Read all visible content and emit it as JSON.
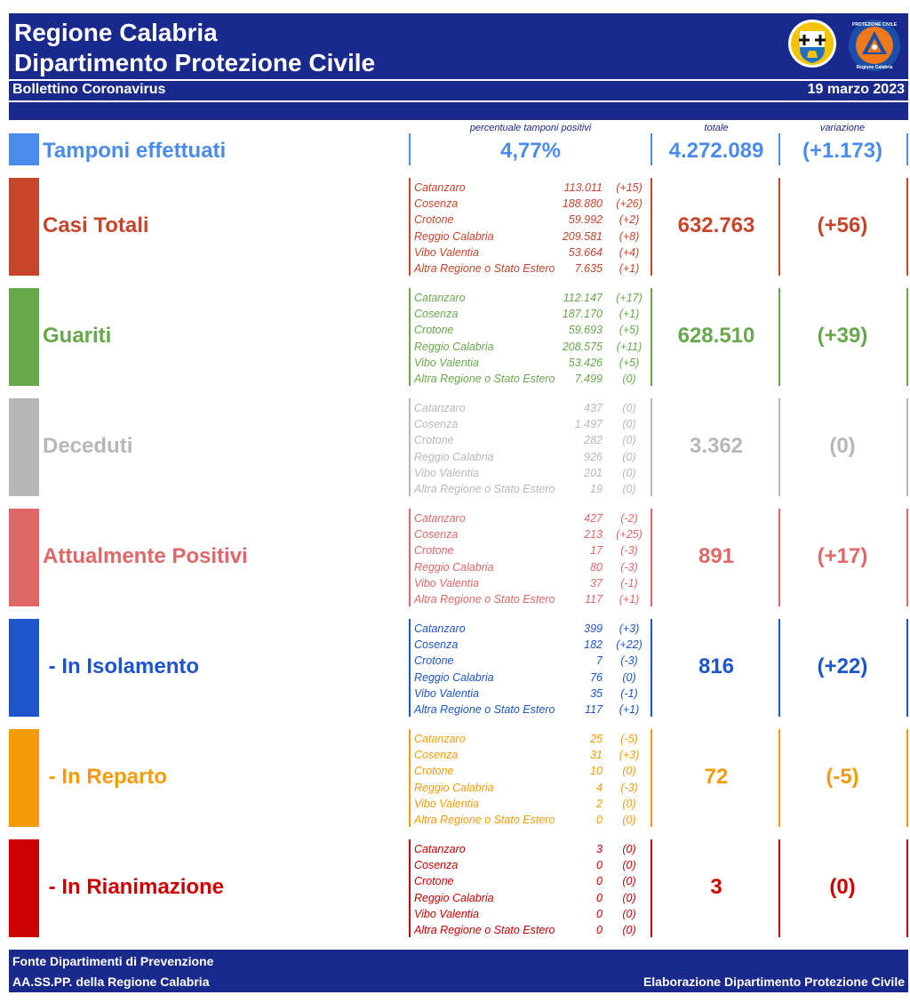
{
  "header": {
    "title_line1": "Regione Calabria",
    "title_line2": "Dipartimento Protezione Civile",
    "subtitle": "Bollettino Coronavirus",
    "date": "19 marzo 2023",
    "logo2_text_top": "PROTEZIONE CIVILE",
    "logo2_text_bottom": "Regione Calabria"
  },
  "tamponi": {
    "label": "Tamponi effettuati",
    "caption_percent": "percentuale tamponi positivi",
    "caption_total": "totale",
    "caption_variation": "variazione",
    "percent": "4,77%",
    "total": "4.272.089",
    "variation": "(+1.173)",
    "color": "#4a8bee"
  },
  "sections": [
    {
      "label": "Casi Totali",
      "color": "#c8442a",
      "total": "632.763",
      "variation": "(+56)",
      "items": [
        {
          "name": "Catanzaro",
          "value": "113.011",
          "delta": "(+15)"
        },
        {
          "name": "Cosenza",
          "value": "188.880",
          "delta": "(+26)"
        },
        {
          "name": "Crotone",
          "value": "59.992",
          "delta": "(+2)"
        },
        {
          "name": "Reggio Calabria",
          "value": "209.581",
          "delta": "(+8)"
        },
        {
          "name": "Vibo Valentia",
          "value": "53.664",
          "delta": "(+4)"
        },
        {
          "name": "Altra Regione o Stato Estero",
          "value": "7.635",
          "delta": "(+1)"
        }
      ]
    },
    {
      "label": "Guariti",
      "color": "#66a84a",
      "total": "628.510",
      "variation": "(+39)",
      "items": [
        {
          "name": "Catanzaro",
          "value": "112.147",
          "delta": "(+17)"
        },
        {
          "name": "Cosenza",
          "value": "187.170",
          "delta": "(+1)"
        },
        {
          "name": "Crotone",
          "value": "59.693",
          "delta": "(+5)"
        },
        {
          "name": "Reggio Calabria",
          "value": "208.575",
          "delta": "(+11)"
        },
        {
          "name": "Vibo Valentia",
          "value": "53.426",
          "delta": "(+5)"
        },
        {
          "name": "Altra Regione o Stato Estero",
          "value": "7.499",
          "delta": "(0)"
        }
      ]
    },
    {
      "label": "Deceduti",
      "color": "#b7b7b7",
      "total": "3.362",
      "variation": "(0)",
      "items": [
        {
          "name": "Catanzaro",
          "value": "437",
          "delta": "(0)"
        },
        {
          "name": "Cosenza",
          "value": "1.497",
          "delta": "(0)"
        },
        {
          "name": "Crotone",
          "value": "282",
          "delta": "(0)"
        },
        {
          "name": "Reggio Calabria",
          "value": "926",
          "delta": "(0)"
        },
        {
          "name": "Vibo Valentia",
          "value": "201",
          "delta": "(0)"
        },
        {
          "name": "Altra Regione o Stato Estero",
          "value": "19",
          "delta": "(0)"
        }
      ]
    },
    {
      "label": "Attualmente Positivi",
      "color": "#e06767",
      "total": "891",
      "variation": "(+17)",
      "items": [
        {
          "name": "Catanzaro",
          "value": "427",
          "delta": "(-2)"
        },
        {
          "name": "Cosenza",
          "value": "213",
          "delta": "(+25)"
        },
        {
          "name": "Crotone",
          "value": "17",
          "delta": "(-3)"
        },
        {
          "name": "Reggio Calabria",
          "value": "80",
          "delta": "(-3)"
        },
        {
          "name": "Vibo Valentia",
          "value": "37",
          "delta": "(-1)"
        },
        {
          "name": "Altra Regione o Stato Estero",
          "value": "117",
          "delta": "(+1)"
        }
      ]
    },
    {
      "label": " - In Isolamento",
      "color": "#1c55cc",
      "total": "816",
      "variation": "(+22)",
      "items": [
        {
          "name": "Catanzaro",
          "value": "399",
          "delta": "(+3)"
        },
        {
          "name": "Cosenza",
          "value": "182",
          "delta": "(+22)"
        },
        {
          "name": "Crotone",
          "value": "7",
          "delta": "(-3)"
        },
        {
          "name": "Reggio Calabria",
          "value": "76",
          "delta": "(0)"
        },
        {
          "name": "Vibo Valentia",
          "value": "35",
          "delta": "(-1)"
        },
        {
          "name": "Altra Regione o Stato Estero",
          "value": "117",
          "delta": "(+1)"
        }
      ]
    },
    {
      "label": " - In Reparto",
      "color": "#f59b0a",
      "total": "72",
      "variation": "(-5)",
      "items": [
        {
          "name": "Catanzaro",
          "value": "25",
          "delta": "(-5)"
        },
        {
          "name": "Cosenza",
          "value": "31",
          "delta": "(+3)"
        },
        {
          "name": "Crotone",
          "value": "10",
          "delta": "(0)"
        },
        {
          "name": "Reggio Calabria",
          "value": "4",
          "delta": "(-3)"
        },
        {
          "name": "Vibo Valentia",
          "value": "2",
          "delta": "(0)"
        },
        {
          "name": "Altra Regione o Stato Estero",
          "value": "0",
          "delta": "(0)"
        }
      ]
    },
    {
      "label": " - In Rianimazione",
      "color": "#cc0000",
      "total": "3",
      "variation": "(0)",
      "items": [
        {
          "name": "Catanzaro",
          "value": "3",
          "delta": "(0)"
        },
        {
          "name": "Cosenza",
          "value": "0",
          "delta": "(0)"
        },
        {
          "name": "Crotone",
          "value": "0",
          "delta": "(0)"
        },
        {
          "name": "Reggio Calabria",
          "value": "0",
          "delta": "(0)"
        },
        {
          "name": "Vibo Valentia",
          "value": "0",
          "delta": "(0)"
        },
        {
          "name": "Altra Regione o Stato Estero",
          "value": "0",
          "delta": "(0)"
        }
      ]
    }
  ],
  "footer": {
    "line1": "Fonte Dipartimenti di Prevenzione",
    "line2": "AA.SS.PP.  della Regione Calabria",
    "credit": "Elaborazione Dipartimento Protezione Civile"
  }
}
